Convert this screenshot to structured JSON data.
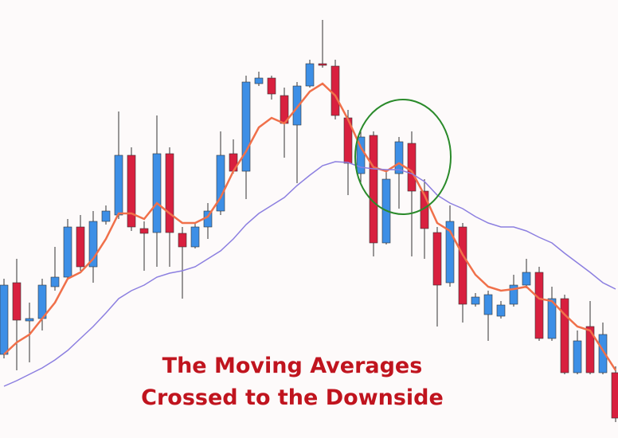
{
  "chart_data": {
    "type": "candlestick",
    "annotations": [
      "The Moving Averages",
      "Crossed to the Downside"
    ],
    "annotation_color": "#c0141e",
    "up_color": "#3d8fe6",
    "down_color": "#d8203f",
    "ylim": [
      0,
      550
    ],
    "open": [
      105,
      195,
      147,
      150,
      190,
      202,
      265,
      215,
      272,
      280,
      355,
      263,
      258,
      357,
      257,
      240,
      265,
      285,
      357,
      335,
      445,
      452,
      430,
      393,
      442,
      470,
      467,
      402,
      332,
      380,
      245,
      332,
      370,
      310,
      258,
      195,
      265,
      168,
      155,
      153,
      168,
      192,
      208,
      125,
      175,
      82,
      140,
      82,
      82
    ],
    "high": [
      200,
      225,
      170,
      200,
      240,
      275,
      280,
      285,
      292,
      410,
      365,
      272,
      405,
      365,
      265,
      270,
      295,
      385,
      375,
      455,
      460,
      455,
      440,
      447,
      475,
      525,
      475,
      412,
      385,
      385,
      335,
      378,
      385,
      325,
      265,
      292,
      270,
      182,
      185,
      172,
      205,
      225,
      215,
      190,
      180,
      135,
      172,
      145,
      90
    ],
    "low": [
      100,
      85,
      95,
      135,
      185,
      198,
      210,
      195,
      268,
      275,
      260,
      210,
      215,
      215,
      175,
      238,
      250,
      280,
      332,
      300,
      442,
      425,
      352,
      320,
      440,
      465,
      400,
      305,
      318,
      228,
      243,
      288,
      228,
      225,
      140,
      190,
      145,
      165,
      122,
      150,
      165,
      188,
      122,
      122,
      80,
      80,
      80,
      80,
      20
    ],
    "close": [
      192,
      148,
      150,
      192,
      202,
      265,
      215,
      272,
      285,
      355,
      265,
      257,
      357,
      258,
      240,
      265,
      285,
      355,
      335,
      447,
      452,
      432,
      395,
      442,
      470,
      468,
      405,
      345,
      378,
      245,
      325,
      372,
      310,
      263,
      192,
      272,
      168,
      177,
      180,
      167,
      192,
      208,
      125,
      175,
      82,
      122,
      82,
      130,
      25
    ],
    "lines": [
      {
        "color": "#f0704a",
        "values": [
          105,
          120,
          130,
          150,
          170,
          200,
          208,
          225,
          250,
          282,
          282,
          275,
          295,
          282,
          270,
          270,
          278,
          302,
          335,
          360,
          390,
          402,
          395,
          415,
          435,
          445,
          430,
          400,
          365,
          340,
          335,
          345,
          335,
          305,
          270,
          260,
          230,
          205,
          190,
          185,
          187,
          190,
          175,
          172,
          155,
          140,
          135,
          110,
          85
        ]
      },
      {
        "color": "#8c7fe0",
        "values": [
          65,
          72,
          80,
          88,
          98,
          110,
          125,
          140,
          157,
          175,
          185,
          192,
          202,
          207,
          210,
          215,
          225,
          235,
          250,
          268,
          282,
          292,
          302,
          317,
          330,
          342,
          347,
          346,
          340,
          338,
          337,
          337,
          332,
          322,
          305,
          295,
          288,
          278,
          270,
          265,
          265,
          260,
          252,
          245,
          232,
          220,
          208,
          195,
          187
        ]
      }
    ]
  }
}
